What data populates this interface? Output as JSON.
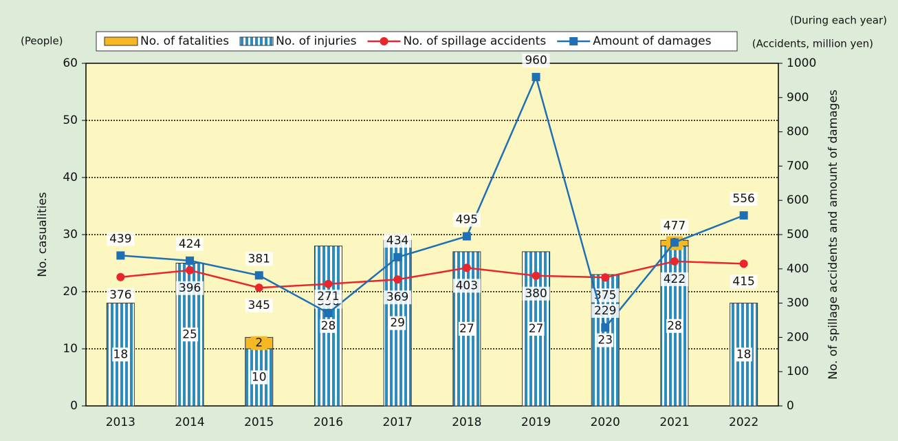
{
  "chart_data": {
    "type": "bar-line",
    "left_unit": "(People)",
    "right_note": "(During each year)",
    "right_unit": "(Accidents, million yen)",
    "ylabel": "No. casualities",
    "y2label": "No. of spillage accidents and amount of damages",
    "categories": [
      "2013",
      "2014",
      "2015",
      "2016",
      "2017",
      "2018",
      "2019",
      "2020",
      "2021",
      "2022"
    ],
    "series": [
      {
        "name": "No. of fatalities",
        "type": "bar",
        "color": "#f5b822",
        "values": [
          null,
          null,
          2,
          null,
          null,
          null,
          null,
          null,
          1,
          null
        ]
      },
      {
        "name": "No. of injuries",
        "type": "bar",
        "color": "#2b8cbd",
        "values": [
          18,
          25,
          10,
          28,
          29,
          27,
          27,
          23,
          28,
          18
        ]
      },
      {
        "name": "No. of spillage accidents",
        "type": "line",
        "axis": "y2",
        "color": "#e8262b",
        "marker": "circle",
        "values": [
          376,
          396,
          345,
          356,
          369,
          403,
          380,
          375,
          422,
          415
        ]
      },
      {
        "name": "Amount of damages",
        "type": "line",
        "axis": "y2",
        "color": "#1f6fb4",
        "marker": "square",
        "values": [
          439,
          424,
          381,
          271,
          434,
          495,
          960,
          229,
          477,
          556
        ]
      }
    ],
    "ylim": [
      0,
      60
    ],
    "yticks": [
      0,
      10,
      20,
      30,
      40,
      50,
      60
    ],
    "y2lim": [
      0,
      1000
    ],
    "y2ticks": [
      0,
      100,
      200,
      300,
      400,
      500,
      600,
      700,
      800,
      900,
      1000
    ],
    "grid": true
  }
}
